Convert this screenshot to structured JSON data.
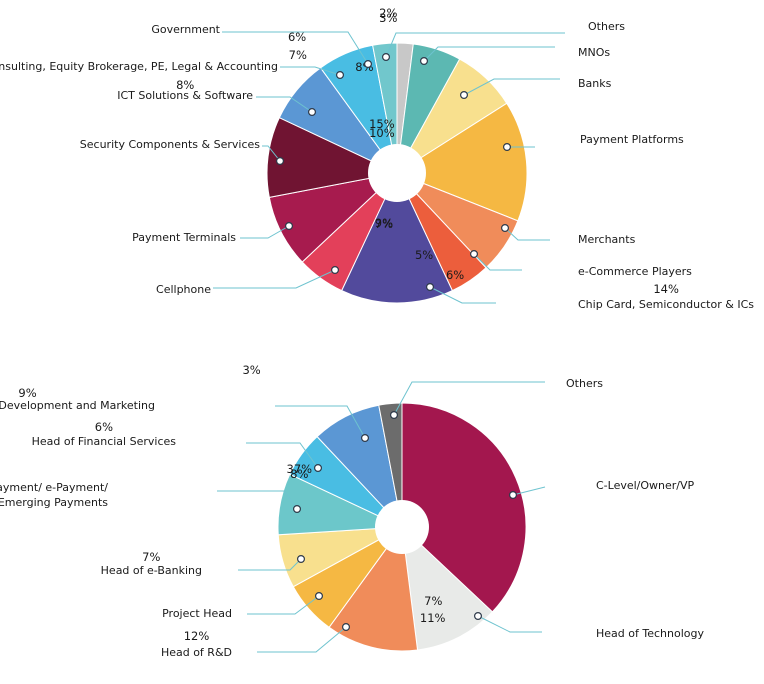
{
  "chart_data": [
    {
      "type": "pie",
      "title": "",
      "categories": [
        "Others",
        "MNOs",
        "Banks",
        "Payment Platforms",
        "Merchants",
        "e-Commerce Players",
        "Chip Card, Semiconductor & ICs",
        "Cellphone",
        "Payment Terminals",
        "Security Components & Services",
        "ICT Solutions & Software",
        "Consulting, Equity Brokerage, PE, Legal & Accounting",
        "Government"
      ],
      "values": [
        2,
        6,
        8,
        15,
        7,
        5,
        14,
        6,
        9,
        10,
        8,
        7,
        3
      ],
      "value_labels": [
        "2%",
        "6%",
        "8%",
        "15%",
        "7%",
        "5%",
        "14%",
        "6%",
        "9%",
        "10%",
        "8%",
        "7%",
        "3%"
      ],
      "colors": [
        "#c8c8c8",
        "#5cb8b2",
        "#f8e08e",
        "#f5b843",
        "#f08c5a",
        "#ec5e3c",
        "#524a9c",
        "#e3405a",
        "#a71b4e",
        "#701432",
        "#5b97d4",
        "#49bde3",
        "#71c7cc"
      ]
    },
    {
      "type": "pie",
      "title": "",
      "categories": [
        "C-Level/Owner/VP",
        "Head of Technology",
        "Head of R&D",
        "Project Head",
        "Head of e-Banking",
        "Head of Mobile Payment/ e-Payment/ Emerging Payments",
        "Head of Financial Services",
        "Head of Business Development and Marketing",
        "Others"
      ],
      "label_lines": [
        [
          "C-Level/Owner/VP"
        ],
        [
          "Head of Technology"
        ],
        [
          "Head of R&D"
        ],
        [
          "Project Head"
        ],
        [
          "Head of e-Banking"
        ],
        [
          "Head of Mobile Payment/ e-Payment/",
          "Emerging Payments"
        ],
        [
          "Head of Financial Services"
        ],
        [
          "Head of Business Development and Marketing"
        ],
        [
          "Others"
        ]
      ],
      "values": [
        37,
        11,
        12,
        7,
        7,
        8,
        6,
        9,
        3
      ],
      "value_labels": [
        "37%",
        "11%",
        "12%",
        "7%",
        "7%",
        "8%",
        "6%",
        "9%",
        "3%"
      ],
      "colors": [
        "#a3174e",
        "#e8eae8",
        "#f08c5a",
        "#f5b843",
        "#f8e08e",
        "#6cc7ca",
        "#49bde3",
        "#5b97d4",
        "#6c6c6c"
      ]
    }
  ]
}
